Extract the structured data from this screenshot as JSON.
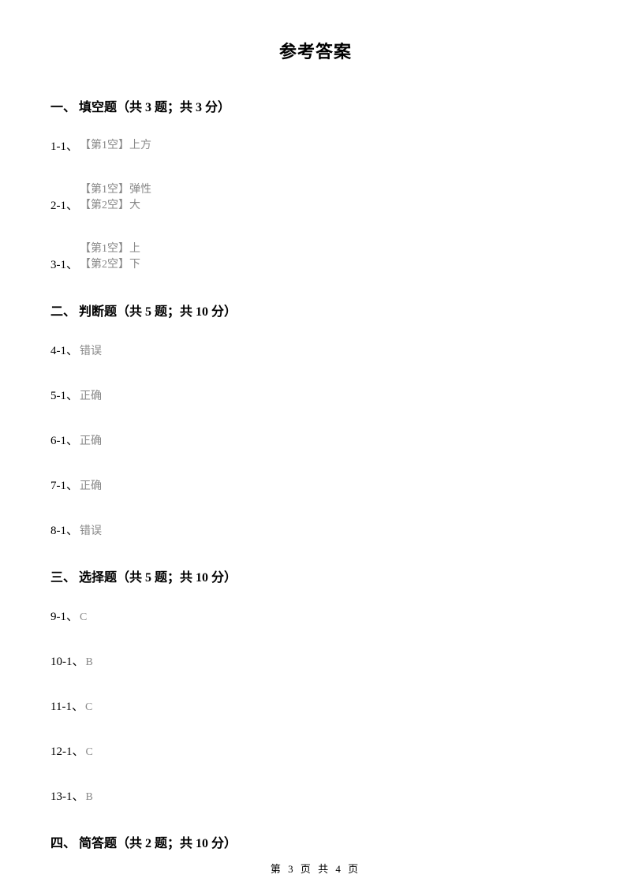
{
  "title": "参考答案",
  "colors": {
    "text_main": "#000000",
    "text_answer": "#888888",
    "background": "#ffffff"
  },
  "typography": {
    "title_fontsize": 22,
    "section_fontsize": 16,
    "label_fontsize": 15,
    "answer_fontsize": 14,
    "footer_fontsize": 13
  },
  "section1": {
    "title": "一、 填空题（共 3 题；共 3 分）",
    "items": [
      {
        "label": "1-1、",
        "lines": [
          "【第1空】上方"
        ]
      },
      {
        "label": "2-1、",
        "lines": [
          "【第1空】弹性",
          "【第2空】大"
        ]
      },
      {
        "label": "3-1、",
        "lines": [
          "【第1空】上",
          "【第2空】下"
        ]
      }
    ]
  },
  "section2": {
    "title": "二、 判断题（共 5 题；共 10 分）",
    "items": [
      {
        "label": "4-1、",
        "value": "错误"
      },
      {
        "label": "5-1、",
        "value": "正确"
      },
      {
        "label": "6-1、",
        "value": "正确"
      },
      {
        "label": "7-1、",
        "value": "正确"
      },
      {
        "label": "8-1、",
        "value": "错误"
      }
    ]
  },
  "section3": {
    "title": "三、 选择题（共 5 题；共 10 分）",
    "items": [
      {
        "label": "9-1、",
        "value": "C"
      },
      {
        "label": "10-1、",
        "value": "B"
      },
      {
        "label": "11-1、",
        "value": "C"
      },
      {
        "label": "12-1、",
        "value": "C"
      },
      {
        "label": "13-1、",
        "value": "B"
      }
    ]
  },
  "section4": {
    "title": "四、 简答题（共 2 题；共 10 分）"
  },
  "footer": "第 3 页 共 4 页"
}
